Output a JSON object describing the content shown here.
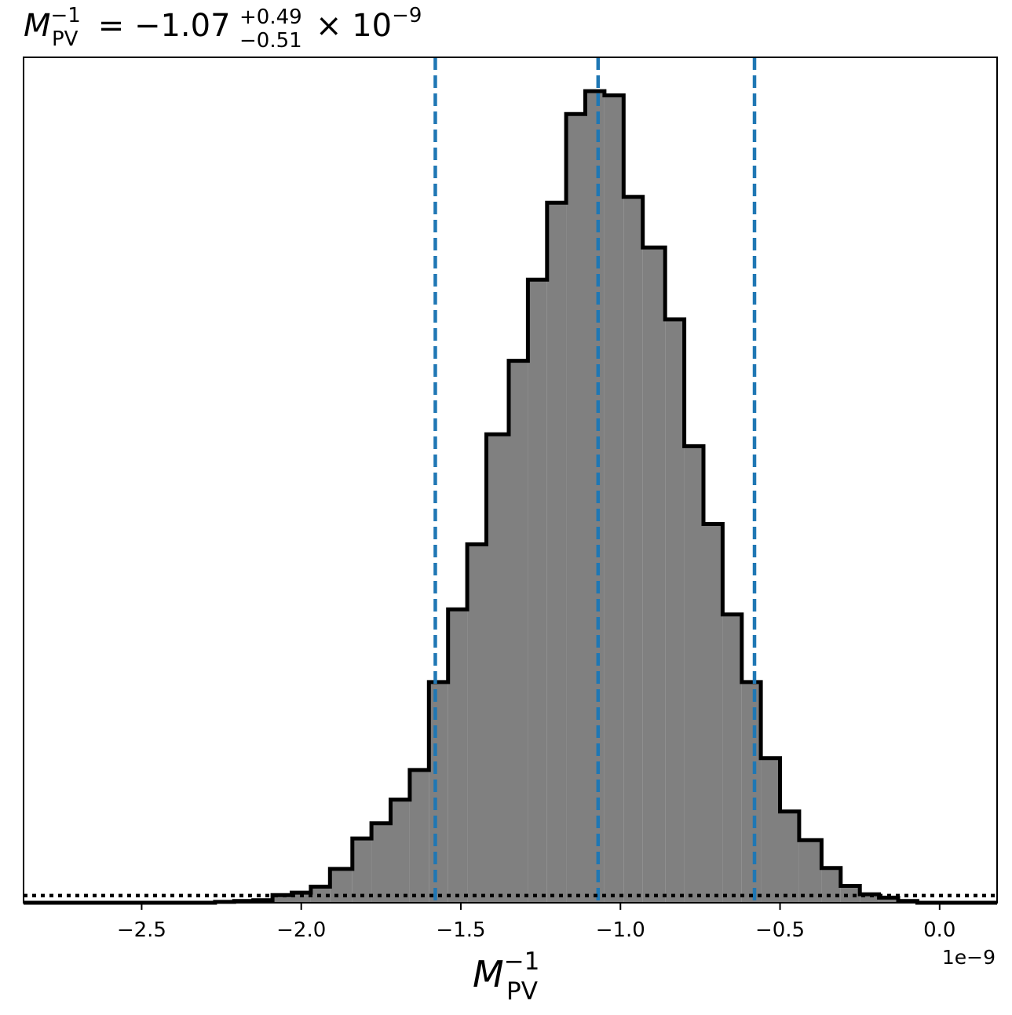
{
  "chart_data": {
    "type": "bar",
    "title": {
      "symbol": "M",
      "subscript": "PV",
      "superscript": "−1",
      "equals": " = −1.07",
      "err_plus": "+0.49",
      "err_minus": "−0.51",
      "times": "× 10",
      "exponent": "−9"
    },
    "xlabel": {
      "symbol": "M",
      "subscript": "PV",
      "superscript": "−1"
    },
    "x_offset_label": "1e−9",
    "x_scale": 1e-09,
    "xlim": [
      -2.87,
      0.18
    ],
    "ylim": [
      0,
      1.0
    ],
    "y_ticks_shown": false,
    "x_ticks": [
      {
        "value": -2.5,
        "label": "−2.5"
      },
      {
        "value": -2.0,
        "label": "−2.0"
      },
      {
        "value": -1.5,
        "label": "−1.5"
      },
      {
        "value": -1.0,
        "label": "−1.0"
      },
      {
        "value": -0.5,
        "label": "−0.5"
      },
      {
        "value": 0.0,
        "label": "0.0"
      }
    ],
    "histogram": {
      "bin_edges": [
        -2.87,
        -2.27,
        -2.21,
        -2.15,
        -2.09,
        -2.03,
        -1.97,
        -1.91,
        -1.84,
        -1.78,
        -1.72,
        -1.66,
        -1.6,
        -1.54,
        -1.48,
        -1.42,
        -1.35,
        -1.29,
        -1.23,
        -1.17,
        -1.11,
        -1.05,
        -0.99,
        -0.93,
        -0.86,
        -0.8,
        -0.74,
        -0.68,
        -0.62,
        -0.56,
        -0.5,
        -0.44,
        -0.37,
        -0.31,
        -0.25,
        -0.19,
        -0.13,
        -0.07,
        0.18
      ],
      "values": [
        0.0,
        0.001,
        0.002,
        0.003,
        0.009,
        0.012,
        0.019,
        0.04,
        0.076,
        0.094,
        0.122,
        0.157,
        0.261,
        0.347,
        0.424,
        0.554,
        0.641,
        0.737,
        0.828,
        0.933,
        0.96,
        0.955,
        0.835,
        0.775,
        0.69,
        0.54,
        0.448,
        0.341,
        0.261,
        0.171,
        0.108,
        0.074,
        0.041,
        0.02,
        0.01,
        0.006,
        0.002,
        0.0
      ],
      "fill_color": "#808080",
      "edge_color": "#000000"
    },
    "vlines": [
      {
        "value": -1.58,
        "role": "16th percentile"
      },
      {
        "value": -1.07,
        "role": "median"
      },
      {
        "value": -0.58,
        "role": "84th percentile"
      }
    ],
    "vline_color": "#1f77b4",
    "hline": {
      "value": 0.0085,
      "style": "dotted",
      "color": "#000000"
    }
  }
}
